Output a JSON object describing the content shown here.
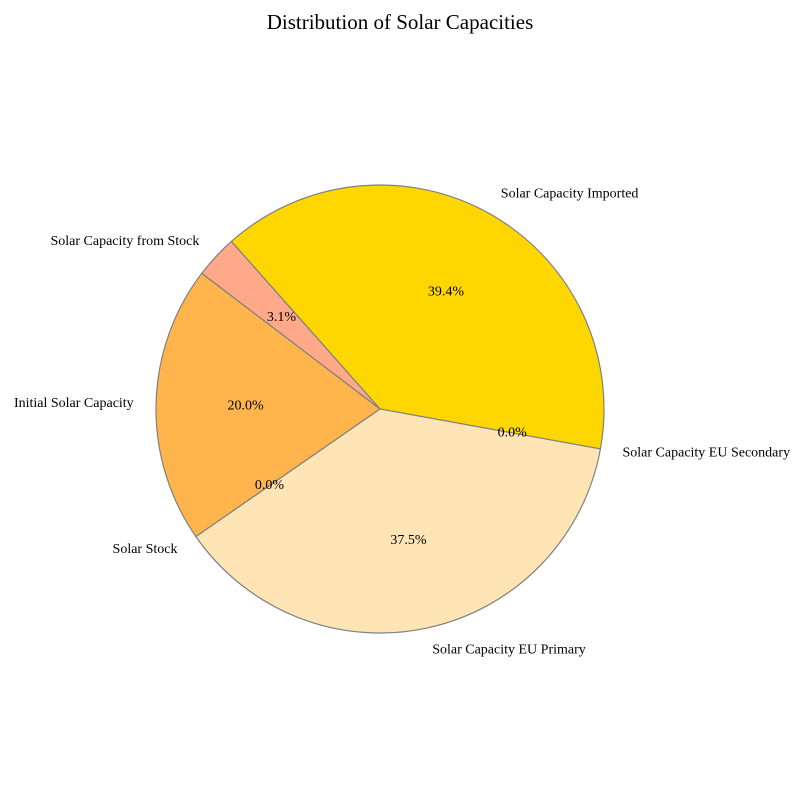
{
  "chart_data": {
    "type": "pie",
    "title": "Distribution of Solar Capacities",
    "start_angle_deg": -10.27,
    "direction": "counterclockwise",
    "slices": [
      {
        "label": "Solar Capacity Imported",
        "value": 39.4,
        "pct_label": "39.4%",
        "color": "#FFD700"
      },
      {
        "label": "Solar Capacity from Stock",
        "value": 3.1,
        "pct_label": "3.1%",
        "color": "#FFA98A"
      },
      {
        "label": "Initial Solar Capacity",
        "value": 20.0,
        "pct_label": "20.0%",
        "color": "#FFB54C"
      },
      {
        "label": "Solar Stock",
        "value": 0.0,
        "pct_label": "0.0%",
        "color": "#FFB54C"
      },
      {
        "label": "Solar Capacity EU Primary",
        "value": 37.5,
        "pct_label": "37.5%",
        "color": "#FFE4B5"
      },
      {
        "label": "Solar Capacity EU Secondary",
        "value": 0.0,
        "pct_label": "0.0%",
        "color": "#FFE4B5"
      }
    ]
  }
}
